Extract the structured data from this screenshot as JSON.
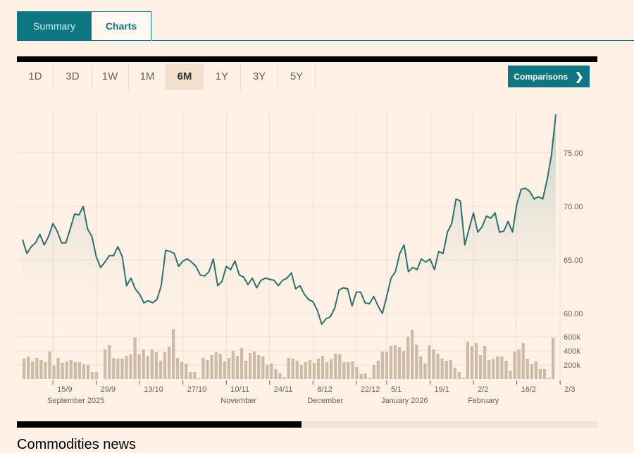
{
  "tabs": [
    {
      "label": "Summary",
      "active": true
    },
    {
      "label": "Charts",
      "active": false
    }
  ],
  "periods": [
    "1D",
    "3D",
    "1W",
    "1M",
    "6M",
    "1Y",
    "3Y",
    "5Y"
  ],
  "selected_period": "6M",
  "comparisons_label": "Comparisons",
  "comparisons_icon": "chevron-right-icon",
  "news_heading": "Commodities news",
  "colors": {
    "accent": "#0D7680",
    "line": "#2f6f70",
    "background": "#FFF1E5",
    "volume": "#cdbba8"
  },
  "scroll_position_fraction": 0.49,
  "chart_data": {
    "type": "line",
    "title": "",
    "y_ticks": [
      "75.00",
      "70.00",
      "65.00",
      "60.00"
    ],
    "y_tick_values": [
      75,
      70,
      65,
      60
    ],
    "ylim": [
      58,
      79
    ],
    "volume_ticks": [
      "600k",
      "400k",
      "200k"
    ],
    "volume_tick_values": [
      600,
      400,
      200
    ],
    "x_ticks": [
      "15/9",
      "29/9",
      "13/10",
      "27/10",
      "10/11",
      "24/11",
      "8/12",
      "22/12",
      "5/1",
      "19/1",
      "2/2",
      "16/2",
      "2/3"
    ],
    "x_tick_index": [
      7,
      17,
      27,
      37,
      47,
      57,
      67,
      77,
      84,
      94,
      104,
      114,
      124
    ],
    "month_labels": [
      {
        "label": "September 2025",
        "at": 7
      },
      {
        "label": "November",
        "at": 47
      },
      {
        "label": "December",
        "at": 67
      },
      {
        "label": "January 2026",
        "at": 84
      },
      {
        "label": "February",
        "at": 104
      }
    ],
    "price": [
      66.9,
      65.6,
      66.25,
      66.6,
      67.4,
      66.4,
      67.2,
      68.4,
      67.7,
      66.6,
      66.6,
      67.9,
      69.3,
      69.2,
      70.0,
      67.9,
      67.2,
      65.3,
      64.3,
      64.8,
      65.4,
      65.4,
      66.25,
      65.3,
      62.6,
      63.3,
      62.3,
      61.8,
      61.0,
      61.2,
      61.0,
      61.3,
      62.6,
      65.9,
      65.8,
      65.6,
      64.4,
      64.9,
      65.1,
      64.8,
      64.4,
      63.6,
      63.5,
      63.9,
      65.1,
      62.6,
      63.0,
      64.4,
      64.1,
      64.9,
      63.6,
      63.4,
      62.7,
      63.3,
      62.4,
      63.1,
      63.3,
      63.2,
      63.1,
      62.6,
      63.1,
      63.3,
      63.8,
      62.3,
      62.6,
      61.8,
      61.3,
      61.1,
      60.3,
      59.0,
      59.5,
      59.7,
      60.5,
      62.2,
      62.4,
      62.3,
      60.7,
      62.0,
      62.0,
      61.0,
      60.9,
      61.6,
      60.7,
      60.0,
      61.6,
      63.3,
      63.9,
      65.6,
      66.4,
      63.9,
      64.3,
      64.1,
      65.1,
      64.8,
      65.1,
      64.1,
      65.8,
      65.6,
      67.6,
      68.4,
      70.7,
      70.5,
      66.4,
      67.9,
      69.4,
      67.6,
      68.1,
      69.1,
      68.9,
      69.4,
      67.6,
      67.7,
      68.6,
      67.6,
      70.2,
      71.6,
      71.7,
      71.4,
      70.7,
      70.9,
      70.7,
      72.5,
      74.8,
      78.6
    ],
    "volume_k": [
      290,
      320,
      250,
      300,
      270,
      240,
      390,
      190,
      300,
      230,
      250,
      270,
      240,
      240,
      210,
      200,
      100,
      100,
      0,
      420,
      480,
      300,
      290,
      290,
      330,
      350,
      590,
      350,
      420,
      330,
      420,
      380,
      260,
      380,
      460,
      710,
      300,
      240,
      220,
      100,
      100,
      10,
      300,
      270,
      340,
      380,
      360,
      250,
      300,
      400,
      330,
      440,
      260,
      370,
      390,
      340,
      320,
      200,
      220,
      140,
      80,
      30,
      300,
      290,
      260,
      200,
      240,
      270,
      230,
      290,
      330,
      240,
      280,
      360,
      350,
      240,
      240,
      250,
      170,
      70,
      80,
      20,
      200,
      260,
      390,
      390,
      470,
      480,
      450,
      400,
      600,
      700,
      490,
      320,
      220,
      480,
      420,
      360,
      290,
      260,
      270,
      160,
      100,
      20,
      530,
      470,
      510,
      340,
      470,
      270,
      280,
      320,
      320,
      260,
      120,
      390,
      420,
      510,
      290,
      210,
      250,
      140,
      140,
      20,
      580
    ]
  }
}
